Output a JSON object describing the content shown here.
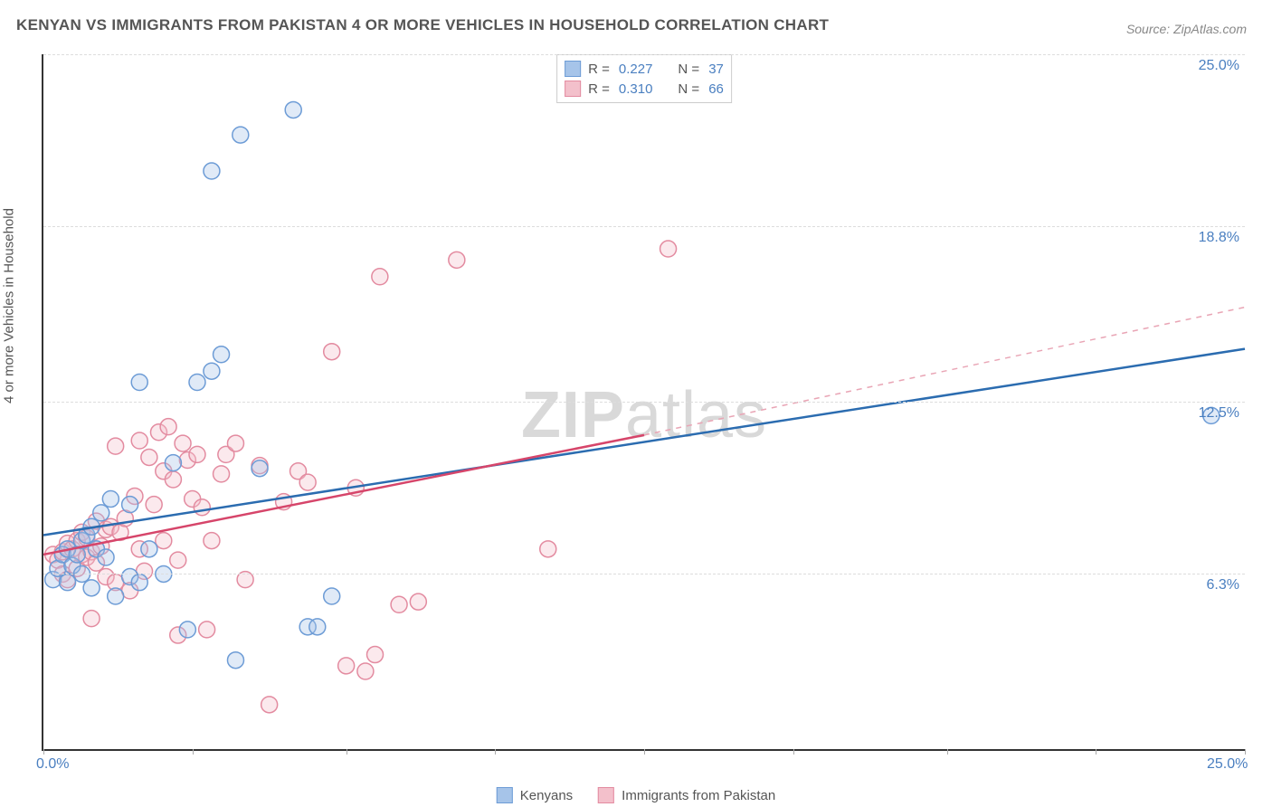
{
  "title": "KENYAN VS IMMIGRANTS FROM PAKISTAN 4 OR MORE VEHICLES IN HOUSEHOLD CORRELATION CHART",
  "source": "Source: ZipAtlas.com",
  "ylabel": "4 or more Vehicles in Household",
  "watermark_bold": "ZIP",
  "watermark_rest": "atlas",
  "chart": {
    "type": "scatter",
    "background_color": "#ffffff",
    "grid_color": "#dddddd",
    "axis_color": "#333333",
    "tick_label_color": "#4a7fc0",
    "xlim": [
      0,
      25
    ],
    "ylim": [
      0,
      25
    ],
    "x_ticks": [
      0,
      3.1,
      6.3,
      9.4,
      12.5,
      15.6,
      18.8,
      21.9,
      25
    ],
    "x_tick_labels": {
      "0": "0.0%",
      "25": "25.0%"
    },
    "y_ticks": [
      6.3,
      12.5,
      18.8,
      25.0
    ],
    "y_tick_labels": [
      "6.3%",
      "12.5%",
      "18.8%",
      "25.0%"
    ],
    "marker_radius": 9,
    "marker_fill_opacity": 0.35,
    "marker_stroke_width": 1.5,
    "fontsize": 15
  },
  "series": {
    "kenyans": {
      "label": "Kenyans",
      "color_fill": "#a6c4e9",
      "color_stroke": "#6d9cd6",
      "R": "0.227",
      "N": "37",
      "trend": {
        "y_at_x0": 7.7,
        "y_at_x25": 14.4,
        "line_color": "#2b6cb0",
        "line_width": 2.5
      },
      "points": [
        [
          0.2,
          6.1
        ],
        [
          0.3,
          6.5
        ],
        [
          0.4,
          7.0
        ],
        [
          0.5,
          6.0
        ],
        [
          0.5,
          7.2
        ],
        [
          0.6,
          6.6
        ],
        [
          0.7,
          7.0
        ],
        [
          0.8,
          6.3
        ],
        [
          0.8,
          7.5
        ],
        [
          0.9,
          7.7
        ],
        [
          1.0,
          5.8
        ],
        [
          1.0,
          8.0
        ],
        [
          1.1,
          7.2
        ],
        [
          1.2,
          8.5
        ],
        [
          1.3,
          6.9
        ],
        [
          1.4,
          9.0
        ],
        [
          1.5,
          5.5
        ],
        [
          1.8,
          6.2
        ],
        [
          1.8,
          8.8
        ],
        [
          2.0,
          6.0
        ],
        [
          2.0,
          13.2
        ],
        [
          2.2,
          7.2
        ],
        [
          2.5,
          6.3
        ],
        [
          2.7,
          10.3
        ],
        [
          3.0,
          4.3
        ],
        [
          3.2,
          13.2
        ],
        [
          3.5,
          13.6
        ],
        [
          3.5,
          20.8
        ],
        [
          3.7,
          14.2
        ],
        [
          4.0,
          3.2
        ],
        [
          4.1,
          22.1
        ],
        [
          4.5,
          10.1
        ],
        [
          5.2,
          23.0
        ],
        [
          5.5,
          4.4
        ],
        [
          5.7,
          4.4
        ],
        [
          6.0,
          5.5
        ],
        [
          24.3,
          12.0
        ]
      ]
    },
    "pakistan": {
      "label": "Immigrants from Pakistan",
      "color_fill": "#f3c0cb",
      "color_stroke": "#e38ba0",
      "R": "0.310",
      "N": "66",
      "trend_solid": {
        "y_at_x0": 7.0,
        "y_at_xmid": 11.3,
        "x_mid": 12.5,
        "line_color": "#d6456a",
        "line_width": 2.5
      },
      "trend_dash": {
        "x_start": 12.5,
        "y_start": 11.3,
        "x_end": 25,
        "y_end": 15.9,
        "line_color": "#e9a5b5",
        "line_width": 1.5,
        "dash": "6 6"
      },
      "points": [
        [
          0.2,
          7.0
        ],
        [
          0.3,
          6.8
        ],
        [
          0.4,
          7.1
        ],
        [
          0.4,
          6.3
        ],
        [
          0.5,
          7.4
        ],
        [
          0.5,
          6.1
        ],
        [
          0.6,
          7.2
        ],
        [
          0.7,
          7.5
        ],
        [
          0.7,
          6.5
        ],
        [
          0.8,
          7.0
        ],
        [
          0.8,
          7.8
        ],
        [
          0.9,
          6.9
        ],
        [
          0.9,
          7.6
        ],
        [
          1.0,
          7.1
        ],
        [
          1.0,
          4.7
        ],
        [
          1.1,
          8.2
        ],
        [
          1.1,
          6.7
        ],
        [
          1.2,
          7.3
        ],
        [
          1.3,
          7.9
        ],
        [
          1.3,
          6.2
        ],
        [
          1.4,
          8.0
        ],
        [
          1.5,
          6.0
        ],
        [
          1.5,
          10.9
        ],
        [
          1.6,
          7.8
        ],
        [
          1.7,
          8.3
        ],
        [
          1.8,
          5.7
        ],
        [
          1.9,
          9.1
        ],
        [
          2.0,
          7.2
        ],
        [
          2.0,
          11.1
        ],
        [
          2.1,
          6.4
        ],
        [
          2.2,
          10.5
        ],
        [
          2.3,
          8.8
        ],
        [
          2.4,
          11.4
        ],
        [
          2.5,
          7.5
        ],
        [
          2.5,
          10.0
        ],
        [
          2.6,
          11.6
        ],
        [
          2.7,
          9.7
        ],
        [
          2.8,
          6.8
        ],
        [
          2.8,
          4.1
        ],
        [
          2.9,
          11.0
        ],
        [
          3.0,
          10.4
        ],
        [
          3.1,
          9.0
        ],
        [
          3.2,
          10.6
        ],
        [
          3.3,
          8.7
        ],
        [
          3.4,
          4.3
        ],
        [
          3.5,
          7.5
        ],
        [
          3.7,
          9.9
        ],
        [
          3.8,
          10.6
        ],
        [
          4.0,
          11.0
        ],
        [
          4.2,
          6.1
        ],
        [
          4.5,
          10.2
        ],
        [
          4.7,
          1.6
        ],
        [
          5.0,
          8.9
        ],
        [
          5.3,
          10.0
        ],
        [
          5.5,
          9.6
        ],
        [
          6.0,
          14.3
        ],
        [
          6.3,
          3.0
        ],
        [
          6.5,
          9.4
        ],
        [
          6.7,
          2.8
        ],
        [
          6.9,
          3.4
        ],
        [
          7.0,
          17.0
        ],
        [
          7.4,
          5.2
        ],
        [
          7.8,
          5.3
        ],
        [
          8.6,
          17.6
        ],
        [
          10.5,
          7.2
        ],
        [
          13.0,
          18.0
        ]
      ]
    }
  },
  "legend_top": {
    "R_label": "R =",
    "N_label": "N ="
  }
}
